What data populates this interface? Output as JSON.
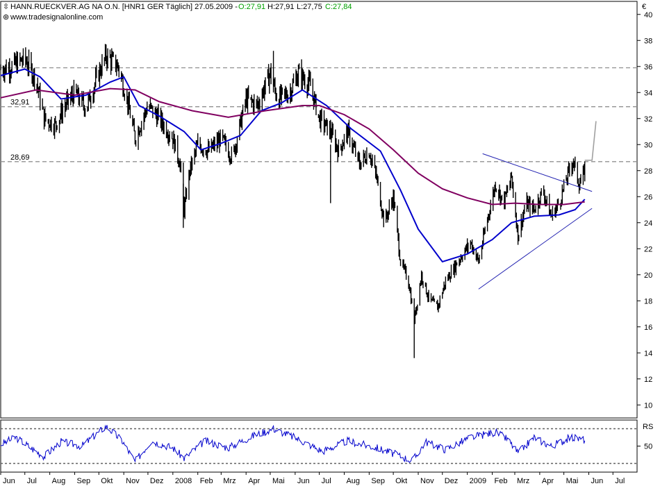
{
  "header": {
    "instrument": "HANN.RUECKVER.AG NA O.N. [HNR1 GER  Täglich] 27.05.2009 -",
    "open": "O:27,91",
    "high": "H:27,91",
    "low": "L:27,75",
    "close": "C:27,84",
    "source": "www.tradesignalonline.com",
    "currency": "€",
    "rsi_label": "RS"
  },
  "colors": {
    "price": "#000000",
    "ma_short": "#0000cc",
    "ma_long": "#800060",
    "trendline": "#2020b0",
    "level_lines": "#909090",
    "up": "#00a000",
    "rsi": "#0000cc",
    "panel_border": "#000000"
  },
  "icons": {
    "expand": "expand-icon",
    "link": "link-icon"
  },
  "chart_data": [
    {
      "type": "line",
      "panel": "price",
      "x_unit": "date",
      "x_range": [
        "2007-06-01",
        "2009-07-31"
      ],
      "ylim": [
        9,
        41
      ],
      "y_ticks": [
        10,
        12,
        14,
        16,
        18,
        20,
        22,
        24,
        26,
        28,
        30,
        32,
        34,
        36,
        38,
        40
      ],
      "x_tick_labels": [
        {
          "x": "2007-06-01",
          "label": "Jun"
        },
        {
          "x": "2007-07-01",
          "label": "Jul"
        },
        {
          "x": "2007-08-01",
          "label": "Aug"
        },
        {
          "x": "2007-09-01",
          "label": "Sep"
        },
        {
          "x": "2007-10-01",
          "label": "Okt"
        },
        {
          "x": "2007-11-01",
          "label": "Nov"
        },
        {
          "x": "2007-12-01",
          "label": "Dez"
        },
        {
          "x": "2008-01-01",
          "label": "2008"
        },
        {
          "x": "2008-02-01",
          "label": "Feb"
        },
        {
          "x": "2008-03-01",
          "label": "Mrz"
        },
        {
          "x": "2008-04-01",
          "label": "Apr"
        },
        {
          "x": "2008-05-01",
          "label": "Mai"
        },
        {
          "x": "2008-06-01",
          "label": "Jun"
        },
        {
          "x": "2008-07-01",
          "label": "Jul"
        },
        {
          "x": "2008-08-01",
          "label": "Aug"
        },
        {
          "x": "2008-09-01",
          "label": "Sep"
        },
        {
          "x": "2008-10-01",
          "label": "Okt"
        },
        {
          "x": "2008-11-01",
          "label": "Nov"
        },
        {
          "x": "2008-12-01",
          "label": "Dez"
        },
        {
          "x": "2009-01-01",
          "label": "2009"
        },
        {
          "x": "2009-02-01",
          "label": "Feb"
        },
        {
          "x": "2009-03-01",
          "label": "Mrz"
        },
        {
          "x": "2009-04-01",
          "label": "Apr"
        },
        {
          "x": "2009-05-01",
          "label": "Mai"
        },
        {
          "x": "2009-06-01",
          "label": "Jun"
        },
        {
          "x": "2009-07-01",
          "label": "Jul"
        }
      ],
      "series": [
        {
          "role": "price",
          "style": "bars",
          "points": [
            {
              "x": "2007-06-01",
              "y": 35.8
            },
            {
              "x": "2007-06-15",
              "y": 36.0
            },
            {
              "x": "2007-07-01",
              "y": 36.6
            },
            {
              "x": "2007-07-15",
              "y": 35.0
            },
            {
              "x": "2007-07-25",
              "y": 32.0
            },
            {
              "x": "2007-08-08",
              "y": 31.5
            },
            {
              "x": "2007-08-20",
              "y": 33.0
            },
            {
              "x": "2007-09-01",
              "y": 34.0
            },
            {
              "x": "2007-09-15",
              "y": 32.8
            },
            {
              "x": "2007-10-01",
              "y": 35.5
            },
            {
              "x": "2007-10-10",
              "y": 36.8
            },
            {
              "x": "2007-10-25",
              "y": 36.0
            },
            {
              "x": "2007-11-05",
              "y": 33.5
            },
            {
              "x": "2007-11-15",
              "y": 30.5
            },
            {
              "x": "2007-12-01",
              "y": 33.0
            },
            {
              "x": "2007-12-15",
              "y": 32.0
            },
            {
              "x": "2008-01-01",
              "y": 30.5
            },
            {
              "x": "2008-01-10",
              "y": 28.5
            },
            {
              "x": "2008-01-15",
              "y": 25.0
            },
            {
              "x": "2008-01-22",
              "y": 28.0
            },
            {
              "x": "2008-02-01",
              "y": 30.0
            },
            {
              "x": "2008-02-15",
              "y": 29.5
            },
            {
              "x": "2008-03-01",
              "y": 30.5
            },
            {
              "x": "2008-03-15",
              "y": 29.0
            },
            {
              "x": "2008-04-01",
              "y": 33.5
            },
            {
              "x": "2008-04-15",
              "y": 33.0
            },
            {
              "x": "2008-05-01",
              "y": 35.5
            },
            {
              "x": "2008-05-10",
              "y": 33.5
            },
            {
              "x": "2008-05-25",
              "y": 34.0
            },
            {
              "x": "2008-06-05",
              "y": 35.5
            },
            {
              "x": "2008-06-20",
              "y": 34.5
            },
            {
              "x": "2008-07-01",
              "y": 32.0
            },
            {
              "x": "2008-07-15",
              "y": 31.0
            },
            {
              "x": "2008-07-25",
              "y": 29.5
            },
            {
              "x": "2008-08-05",
              "y": 31.0
            },
            {
              "x": "2008-08-20",
              "y": 28.5
            },
            {
              "x": "2008-09-01",
              "y": 29.5
            },
            {
              "x": "2008-09-10",
              "y": 27.5
            },
            {
              "x": "2008-09-20",
              "y": 24.0
            },
            {
              "x": "2008-10-01",
              "y": 26.0
            },
            {
              "x": "2008-10-10",
              "y": 21.0
            },
            {
              "x": "2008-10-20",
              "y": 19.5
            },
            {
              "x": "2008-10-27",
              "y": 16.5
            },
            {
              "x": "2008-11-05",
              "y": 20.0
            },
            {
              "x": "2008-11-15",
              "y": 18.0
            },
            {
              "x": "2008-11-25",
              "y": 17.5
            },
            {
              "x": "2008-12-05",
              "y": 19.5
            },
            {
              "x": "2008-12-20",
              "y": 21.0
            },
            {
              "x": "2009-01-05",
              "y": 22.5
            },
            {
              "x": "2009-01-15",
              "y": 21.0
            },
            {
              "x": "2009-01-25",
              "y": 24.0
            },
            {
              "x": "2009-02-05",
              "y": 27.0
            },
            {
              "x": "2009-02-15",
              "y": 25.5
            },
            {
              "x": "2009-02-25",
              "y": 27.5
            },
            {
              "x": "2009-03-05",
              "y": 23.0
            },
            {
              "x": "2009-03-15",
              "y": 25.5
            },
            {
              "x": "2009-03-25",
              "y": 25.0
            },
            {
              "x": "2009-04-05",
              "y": 26.5
            },
            {
              "x": "2009-04-15",
              "y": 24.5
            },
            {
              "x": "2009-04-25",
              "y": 25.5
            },
            {
              "x": "2009-05-05",
              "y": 27.5
            },
            {
              "x": "2009-05-12",
              "y": 28.8
            },
            {
              "x": "2009-05-20",
              "y": 27.0
            },
            {
              "x": "2009-05-27",
              "y": 27.84
            }
          ]
        },
        {
          "role": "ma_short",
          "points": [
            {
              "x": "2007-06-01",
              "y": 35.3
            },
            {
              "x": "2007-07-01",
              "y": 35.8
            },
            {
              "x": "2007-07-20",
              "y": 35.2
            },
            {
              "x": "2007-08-15",
              "y": 33.5
            },
            {
              "x": "2007-09-15",
              "y": 33.8
            },
            {
              "x": "2007-10-15",
              "y": 34.8
            },
            {
              "x": "2007-11-01",
              "y": 35.2
            },
            {
              "x": "2007-11-20",
              "y": 33.0
            },
            {
              "x": "2007-12-15",
              "y": 32.2
            },
            {
              "x": "2008-01-15",
              "y": 31.0
            },
            {
              "x": "2008-02-05",
              "y": 29.6
            },
            {
              "x": "2008-03-01",
              "y": 30.1
            },
            {
              "x": "2008-03-25",
              "y": 30.7
            },
            {
              "x": "2008-04-20",
              "y": 32.6
            },
            {
              "x": "2008-05-15",
              "y": 33.2
            },
            {
              "x": "2008-06-10",
              "y": 34.2
            },
            {
              "x": "2008-07-10",
              "y": 33.0
            },
            {
              "x": "2008-08-10",
              "y": 31.2
            },
            {
              "x": "2008-09-15",
              "y": 29.5
            },
            {
              "x": "2008-10-10",
              "y": 26.5
            },
            {
              "x": "2008-11-01",
              "y": 23.5
            },
            {
              "x": "2008-12-01",
              "y": 21.0
            },
            {
              "x": "2009-01-01",
              "y": 21.6
            },
            {
              "x": "2009-02-01",
              "y": 22.7
            },
            {
              "x": "2009-02-25",
              "y": 24.0
            },
            {
              "x": "2009-03-25",
              "y": 24.5
            },
            {
              "x": "2009-04-25",
              "y": 24.6
            },
            {
              "x": "2009-05-15",
              "y": 25.0
            },
            {
              "x": "2009-05-27",
              "y": 25.8
            }
          ]
        },
        {
          "role": "ma_long",
          "points": [
            {
              "x": "2007-06-01",
              "y": 33.6
            },
            {
              "x": "2007-07-15",
              "y": 34.2
            },
            {
              "x": "2007-09-01",
              "y": 33.8
            },
            {
              "x": "2007-10-15",
              "y": 34.3
            },
            {
              "x": "2007-11-15",
              "y": 34.2
            },
            {
              "x": "2007-12-15",
              "y": 33.3
            },
            {
              "x": "2008-01-25",
              "y": 32.6
            },
            {
              "x": "2008-03-10",
              "y": 32.1
            },
            {
              "x": "2008-04-25",
              "y": 32.6
            },
            {
              "x": "2008-06-10",
              "y": 33.0
            },
            {
              "x": "2008-07-01",
              "y": 33.0
            },
            {
              "x": "2008-08-01",
              "y": 32.3
            },
            {
              "x": "2008-09-01",
              "y": 31.2
            },
            {
              "x": "2008-10-01",
              "y": 29.6
            },
            {
              "x": "2008-11-01",
              "y": 27.8
            },
            {
              "x": "2008-12-01",
              "y": 26.6
            },
            {
              "x": "2009-01-01",
              "y": 25.9
            },
            {
              "x": "2009-02-01",
              "y": 25.4
            },
            {
              "x": "2009-03-01",
              "y": 25.5
            },
            {
              "x": "2009-04-01",
              "y": 25.4
            },
            {
              "x": "2009-05-01",
              "y": 25.4
            },
            {
              "x": "2009-05-27",
              "y": 25.6
            }
          ]
        }
      ],
      "level_lines": [
        {
          "y": 35.9,
          "label": ""
        },
        {
          "y": 32.91,
          "label": "32,91"
        },
        {
          "y": 28.69,
          "label": "28,69"
        }
      ],
      "trendlines": [
        {
          "from": {
            "x": "2009-01-20",
            "y": 29.3
          },
          "to": {
            "x": "2009-06-05",
            "y": 26.4
          }
        },
        {
          "from": {
            "x": "2009-01-15",
            "y": 18.9
          },
          "to": {
            "x": "2009-06-05",
            "y": 25.1
          }
        }
      ],
      "projection": [
        {
          "x": "2009-05-27",
          "y": 28.8
        },
        {
          "x": "2009-06-05",
          "y": 28.8
        },
        {
          "x": "2009-06-10",
          "y": 31.8
        }
      ]
    },
    {
      "type": "line",
      "panel": "rsi",
      "name": "RSI",
      "ylim": [
        20,
        80
      ],
      "y_ticks": [
        50
      ],
      "reference_lines": [
        70,
        30
      ],
      "points": [
        {
          "x": "2007-06-01",
          "y": 52
        },
        {
          "x": "2007-06-20",
          "y": 60
        },
        {
          "x": "2007-07-10",
          "y": 47
        },
        {
          "x": "2007-07-25",
          "y": 38
        },
        {
          "x": "2007-08-15",
          "y": 55
        },
        {
          "x": "2007-09-10",
          "y": 50
        },
        {
          "x": "2007-10-10",
          "y": 73
        },
        {
          "x": "2007-10-30",
          "y": 56
        },
        {
          "x": "2007-11-15",
          "y": 32
        },
        {
          "x": "2007-12-05",
          "y": 56
        },
        {
          "x": "2008-01-01",
          "y": 48
        },
        {
          "x": "2008-01-15",
          "y": 36
        },
        {
          "x": "2008-02-10",
          "y": 56
        },
        {
          "x": "2008-03-10",
          "y": 48
        },
        {
          "x": "2008-04-10",
          "y": 62
        },
        {
          "x": "2008-05-05",
          "y": 70
        },
        {
          "x": "2008-06-05",
          "y": 58
        },
        {
          "x": "2008-07-05",
          "y": 44
        },
        {
          "x": "2008-08-05",
          "y": 56
        },
        {
          "x": "2008-09-10",
          "y": 48
        },
        {
          "x": "2008-10-05",
          "y": 40
        },
        {
          "x": "2008-10-25",
          "y": 33
        },
        {
          "x": "2008-11-10",
          "y": 55
        },
        {
          "x": "2008-12-05",
          "y": 46
        },
        {
          "x": "2009-01-05",
          "y": 60
        },
        {
          "x": "2009-02-05",
          "y": 66
        },
        {
          "x": "2009-02-20",
          "y": 58
        },
        {
          "x": "2009-03-05",
          "y": 42
        },
        {
          "x": "2009-03-25",
          "y": 60
        },
        {
          "x": "2009-04-15",
          "y": 50
        },
        {
          "x": "2009-05-10",
          "y": 60
        },
        {
          "x": "2009-05-27",
          "y": 57
        }
      ]
    }
  ]
}
